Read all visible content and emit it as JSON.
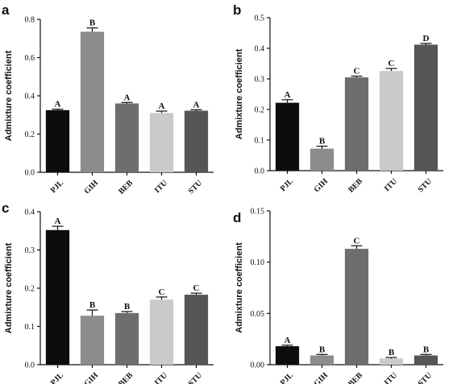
{
  "chart_data": [
    {
      "panel": "a",
      "type": "bar",
      "categories": [
        "PJL",
        "GIH",
        "BEB",
        "ITU",
        "STU"
      ],
      "values": [
        0.325,
        0.735,
        0.36,
        0.31,
        0.322
      ],
      "errors": [
        0.005,
        0.02,
        0.005,
        0.01,
        0.005
      ],
      "letters": [
        "A",
        "B",
        "A",
        "A",
        "A"
      ],
      "ylabel": "Admixture coefficient",
      "ylim": [
        0,
        0.8
      ],
      "yticks": [
        0.0,
        0.2,
        0.4,
        0.6,
        0.8
      ],
      "ytick_labels": [
        "0.0",
        "0.2",
        "0.4",
        "0.6",
        "0.8"
      ]
    },
    {
      "panel": "b",
      "type": "bar",
      "categories": [
        "PJL",
        "GIH",
        "BEB",
        "ITU",
        "STU"
      ],
      "values": [
        0.222,
        0.072,
        0.305,
        0.326,
        0.412
      ],
      "errors": [
        0.01,
        0.008,
        0.004,
        0.008,
        0.004
      ],
      "letters": [
        "A",
        "B",
        "C",
        "C",
        "D"
      ],
      "ylabel": "Admixture coefficient",
      "ylim": [
        0,
        0.5
      ],
      "yticks": [
        0.0,
        0.1,
        0.2,
        0.3,
        0.4,
        0.5
      ],
      "ytick_labels": [
        "0.0",
        "0.1",
        "0.2",
        "0.3",
        "0.4",
        "0.5"
      ]
    },
    {
      "panel": "c",
      "type": "bar",
      "categories": [
        "PJL",
        "GIH",
        "BEB",
        "ITU",
        "STU"
      ],
      "values": [
        0.352,
        0.128,
        0.135,
        0.17,
        0.183
      ],
      "errors": [
        0.01,
        0.015,
        0.004,
        0.007,
        0.004
      ],
      "letters": [
        "A",
        "B",
        "B",
        "C",
        "C"
      ],
      "ylabel": "Admixture coefficient",
      "ylim": [
        0,
        0.4
      ],
      "yticks": [
        0.0,
        0.1,
        0.2,
        0.3,
        0.4
      ],
      "ytick_labels": [
        "0.0",
        "0.1",
        "0.2",
        "0.3",
        "0.4"
      ]
    },
    {
      "panel": "d",
      "type": "bar",
      "categories": [
        "PJL",
        "GIH",
        "BEB",
        "ITU",
        "STU"
      ],
      "values": [
        0.018,
        0.009,
        0.113,
        0.006,
        0.009
      ],
      "errors": [
        0.001,
        0.001,
        0.003,
        0.001,
        0.001
      ],
      "letters": [
        "A",
        "B",
        "C",
        "B",
        "B"
      ],
      "ylabel": "Admixture coefficient",
      "ylim": [
        0,
        0.15
      ],
      "yticks": [
        0.0,
        0.05,
        0.1,
        0.15
      ],
      "ytick_labels": [
        "0.00",
        "0.05",
        "0.10",
        "0.15"
      ]
    }
  ],
  "colors": {
    "bars": [
      "#0d0d0d",
      "#8c8c8c",
      "#6e6e6e",
      "#cacaca",
      "#555555"
    ],
    "axis": "#111111"
  }
}
